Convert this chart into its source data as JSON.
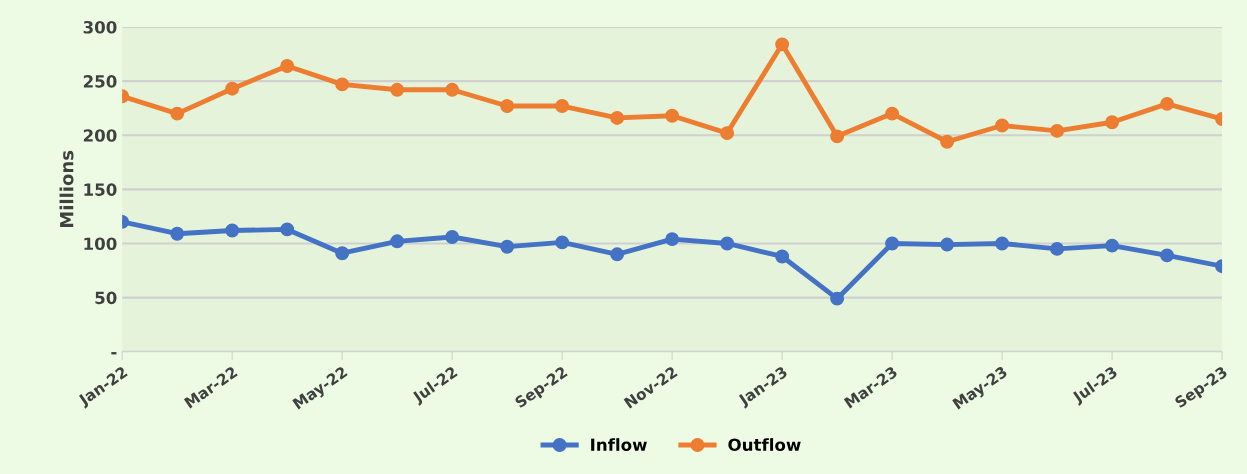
{
  "chart_data": {
    "type": "line",
    "ylabel": "Millions",
    "categories": [
      "Jan-22",
      null,
      "Mar-22",
      null,
      "May-22",
      null,
      "Jul-22",
      null,
      "Sep-22",
      null,
      "Nov-22",
      null,
      "Jan-23",
      null,
      "Mar-23",
      null,
      "May-23",
      null,
      "Jul-23",
      null,
      "Sep-23"
    ],
    "series": [
      {
        "name": "Inflow",
        "color": "#4472c4",
        "values": [
          120,
          109,
          112,
          113,
          91,
          102,
          106,
          97,
          101,
          90,
          104,
          100,
          88,
          49,
          100,
          99,
          100,
          95,
          98,
          89,
          79
        ]
      },
      {
        "name": "Outflow",
        "color": "#ed7d31",
        "values": [
          236,
          220,
          243,
          264,
          247,
          242,
          242,
          227,
          227,
          216,
          218,
          202,
          284,
          199,
          220,
          194,
          209,
          204,
          212,
          229,
          215
        ]
      }
    ],
    "ylim": [
      0,
      300
    ],
    "yticks": [
      {
        "value": 0,
        "label": "-"
      },
      50,
      100,
      150,
      200,
      250,
      300
    ],
    "grid": "y",
    "legend": "bottom",
    "marker": "circle",
    "line_style": "solid"
  }
}
